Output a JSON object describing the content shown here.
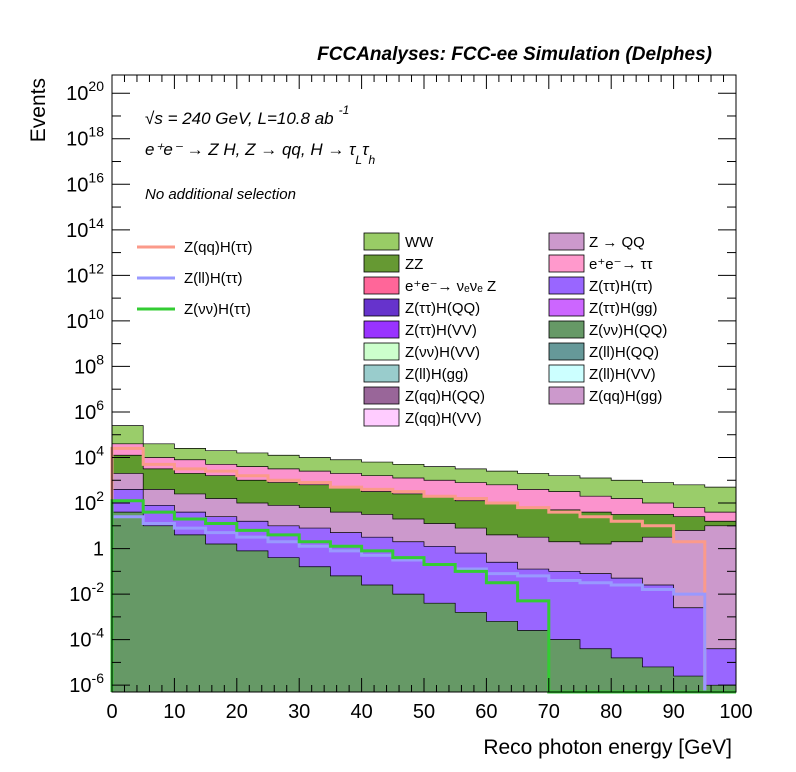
{
  "chart_data": {
    "type": "area",
    "title": "FCCAnalyses: FCC-ee Simulation (Delphes)",
    "annotations": {
      "line1_prefix": "√",
      "line1": "s = 240 GeV, L=10.8 ab",
      "line1_sup": "-1",
      "line2": "e⁺e⁻ → Z H, Z → qq, H → τ",
      "line2_sub1": "L",
      "line2_mid": "τ",
      "line2_sub2": "h",
      "line3": "No additional selection"
    },
    "xlabel": "Reco photon energy [GeV]",
    "ylabel": "Events",
    "xlim": [
      0,
      100
    ],
    "ylim_log10": [
      -6.3,
      20.8
    ],
    "yscale": "log",
    "x_ticks": [
      "0",
      "10",
      "20",
      "30",
      "40",
      "50",
      "60",
      "70",
      "80",
      "90",
      "100"
    ],
    "y_ticks": [
      {
        "base": "10",
        "exp": "-6",
        "log": -6
      },
      {
        "base": "10",
        "exp": "-4",
        "log": -4
      },
      {
        "base": "10",
        "exp": "-2",
        "log": -2
      },
      {
        "base": "1",
        "exp": "",
        "log": 0
      },
      {
        "base": "10",
        "exp": "2",
        "log": 2
      },
      {
        "base": "10",
        "exp": "4",
        "log": 4
      },
      {
        "base": "10",
        "exp": "6",
        "log": 6
      },
      {
        "base": "10",
        "exp": "8",
        "log": 8
      },
      {
        "base": "10",
        "exp": "10",
        "log": 10
      },
      {
        "base": "10",
        "exp": "12",
        "log": 12
      },
      {
        "base": "10",
        "exp": "14",
        "log": 14
      },
      {
        "base": "10",
        "exp": "16",
        "log": 16
      },
      {
        "base": "10",
        "exp": "18",
        "log": 18
      },
      {
        "base": "10",
        "exp": "20",
        "log": 20
      }
    ],
    "stack_layers": [
      {
        "name": "WW",
        "color": "#9acd6a",
        "top_log10": [
          5.4,
          4.6,
          4.4,
          4.3,
          4.2,
          4.1,
          4.0,
          3.9,
          3.8,
          3.7,
          3.6,
          3.5,
          3.4,
          3.3,
          3.2,
          3.1,
          3.0,
          2.9,
          2.8,
          2.7
        ]
      },
      {
        "name": "e⁺e⁻→ ττ",
        "color": "#fb93cd",
        "top_log10": [
          4.6,
          4.0,
          3.9,
          3.7,
          3.6,
          3.5,
          3.4,
          3.3,
          3.2,
          3.1,
          3.0,
          2.9,
          2.8,
          2.6,
          2.5,
          2.3,
          2.2,
          2.0,
          1.8,
          1.6
        ]
      },
      {
        "name": "ZZ",
        "color": "#5f9a2e",
        "top_log10": [
          4.1,
          3.5,
          3.3,
          3.2,
          3.0,
          2.9,
          2.8,
          2.7,
          2.5,
          2.4,
          2.3,
          2.1,
          2.0,
          1.8,
          1.7,
          1.6,
          1.5,
          1.5,
          1.4,
          1.2
        ]
      },
      {
        "name": "Z → QQ",
        "color": "#cc99cc",
        "top_log10": [
          3.3,
          2.6,
          2.4,
          2.2,
          2.0,
          1.9,
          1.8,
          1.6,
          1.5,
          1.3,
          1.1,
          0.9,
          0.6,
          0.5,
          0.3,
          0.2,
          0.3,
          0.5,
          0.8,
          1.0
        ]
      },
      {
        "name": "Z(ττ)H(ττ)",
        "color": "#9966ff",
        "top_log10": [
          2.6,
          1.9,
          1.6,
          1.4,
          1.2,
          1.0,
          0.9,
          0.7,
          0.5,
          0.3,
          0.1,
          -0.2,
          -0.6,
          -0.9,
          -1.0,
          -1.1,
          -1.3,
          -1.6,
          -2.6,
          -4.4
        ]
      },
      {
        "name": "Z(νν)H(QQ)",
        "color": "#669966",
        "top_log10": [
          1.6,
          1.0,
          0.6,
          0.2,
          -0.1,
          -0.4,
          -0.8,
          -1.2,
          -1.6,
          -2.0,
          -2.4,
          -2.8,
          -3.2,
          -3.6,
          -4.0,
          -4.4,
          -4.8,
          -5.2,
          -5.6,
          -6.0
        ]
      }
    ],
    "line_series": [
      {
        "name": "Z(qq)H(ττ)",
        "color": "#fb9a8a",
        "log10": [
          4.4,
          3.7,
          3.5,
          3.4,
          3.2,
          3.0,
          2.9,
          2.7,
          2.6,
          2.5,
          2.3,
          2.2,
          2.0,
          1.8,
          1.6,
          1.4,
          1.2,
          1.0,
          0.3,
          -6.3
        ]
      },
      {
        "name": "Z(ll)H(ττ)",
        "color": "#9999ff",
        "log10": [
          1.4,
          1.1,
          0.9,
          0.7,
          0.5,
          0.3,
          0.1,
          -0.1,
          -0.3,
          -0.5,
          -0.7,
          -0.9,
          -1.1,
          -1.2,
          -1.4,
          -1.5,
          -1.6,
          -1.8,
          -2.0,
          -6.3
        ]
      },
      {
        "name": "Z(νν)H(ττ)",
        "color": "#33cc33",
        "log10": [
          2.1,
          1.6,
          1.3,
          1.1,
          0.8,
          0.6,
          0.3,
          0.1,
          -0.1,
          -0.4,
          -0.7,
          -1.0,
          -1.5,
          -2.3,
          -6.3,
          -6.3,
          -6.3,
          -6.3,
          -6.3,
          -6.3
        ]
      }
    ],
    "legend_lines": [
      {
        "label": "Z(qq)H(ττ)",
        "color": "#fb9a8a"
      },
      {
        "label": "Z(ll)H(ττ)",
        "color": "#9999ff"
      },
      {
        "label": "Z(νν)H(ττ)",
        "color": "#33cc33"
      }
    ],
    "legend_col1": [
      {
        "label": "WW",
        "color": "#99cc66"
      },
      {
        "label": "ZZ",
        "color": "#669933"
      },
      {
        "label": "e⁺e⁻→ νₑνₑ Z",
        "color": "#ff6699"
      },
      {
        "label": "Z(ττ)H(QQ)",
        "color": "#6633cc"
      },
      {
        "label": "Z(ττ)H(VV)",
        "color": "#9933ff"
      },
      {
        "label": "Z(νν)H(VV)",
        "color": "#ccffcc"
      },
      {
        "label": "Z(ll)H(gg)",
        "color": "#99cccc"
      },
      {
        "label": "Z(qq)H(QQ)",
        "color": "#996699"
      },
      {
        "label": "Z(qq)H(VV)",
        "color": "#ffccff"
      }
    ],
    "legend_col2": [
      {
        "label": "Z → QQ",
        "color": "#cc99cc"
      },
      {
        "label": "e⁺e⁻→ ττ",
        "color": "#ff99cc"
      },
      {
        "label": "Z(ττ)H(ττ)",
        "color": "#9966ff"
      },
      {
        "label": "Z(ττ)H(gg)",
        "color": "#cc66ff"
      },
      {
        "label": "Z(νν)H(QQ)",
        "color": "#669966"
      },
      {
        "label": "Z(ll)H(QQ)",
        "color": "#669999"
      },
      {
        "label": "Z(ll)H(VV)",
        "color": "#ccffff"
      },
      {
        "label": "Z(qq)H(gg)",
        "color": "#cc99cc"
      }
    ]
  }
}
